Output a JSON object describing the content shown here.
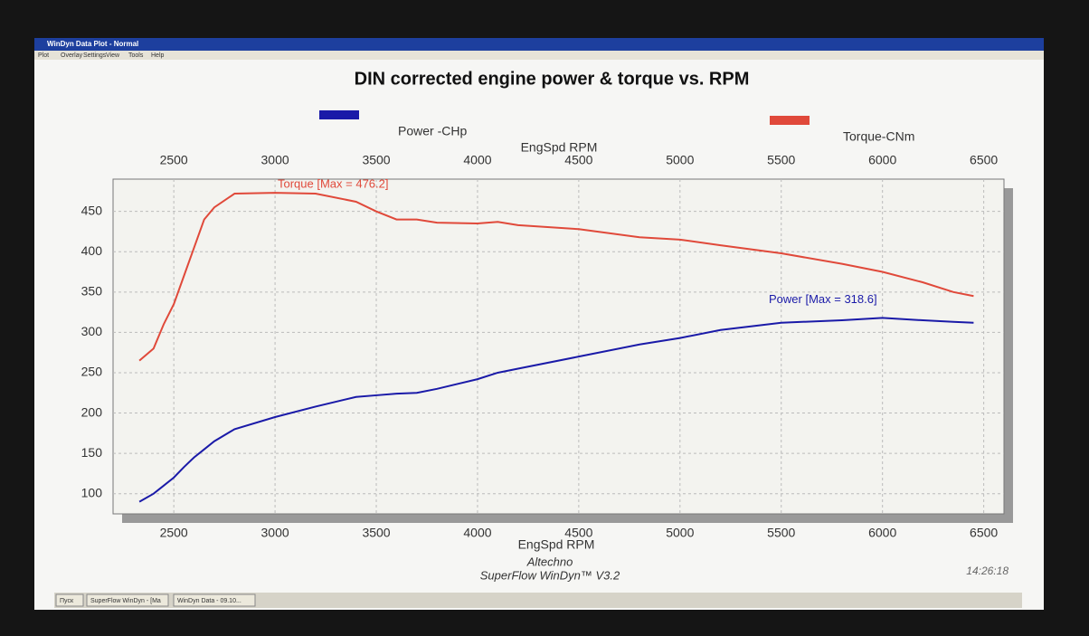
{
  "window": {
    "title": "WinDyn Data Plot - Normal",
    "menu": [
      "Plot",
      "Overlay",
      "Settings",
      "View",
      "Tools",
      "Help"
    ],
    "taskbar": [
      "Пуск",
      "SuperFlow WinDyn - [Ma",
      "WinDyn Data - 09.10..."
    ]
  },
  "chart_data": {
    "type": "line",
    "title": "DIN corrected engine power & torque vs. RPM",
    "x_label": "EngSpd RPM",
    "x": [
      2330,
      2400,
      2450,
      2500,
      2550,
      2600,
      2650,
      2700,
      2800,
      3000,
      3200,
      3400,
      3500,
      3600,
      3700,
      3800,
      4000,
      4100,
      4200,
      4500,
      4800,
      5000,
      5200,
      5500,
      5800,
      6000,
      6200,
      6350,
      6450
    ],
    "series": [
      {
        "name": "Power -CHp",
        "color": "#1a1aa8",
        "values": [
          90,
          100,
          110,
          120,
          133,
          145,
          155,
          165,
          180,
          195,
          208,
          220,
          222,
          224,
          225,
          230,
          242,
          250,
          255,
          270,
          285,
          293,
          303,
          312,
          315,
          318,
          315,
          313,
          312
        ]
      },
      {
        "name": "Torque-CNm",
        "color": "#e0493a",
        "values": [
          265,
          280,
          310,
          335,
          370,
          405,
          440,
          455,
          472,
          473,
          472,
          462,
          450,
          440,
          440,
          436,
          435,
          437,
          433,
          428,
          418,
          415,
          408,
          398,
          385,
          375,
          362,
          350,
          345
        ]
      }
    ],
    "annotations": [
      "Power  [Max = 318.6]",
      "Torque [Max = 476.2]"
    ],
    "xlim": [
      2200,
      6600
    ],
    "xticks": [
      2500,
      3000,
      3500,
      4000,
      4500,
      5000,
      5500,
      6000,
      6500
    ],
    "ylim": [
      75,
      490
    ],
    "yticks": [
      100,
      150,
      200,
      250,
      300,
      350,
      400,
      450
    ],
    "grid": true
  },
  "footer": {
    "company": "Altechno",
    "software": "SuperFlow WinDyn™ V3.2",
    "time": "14:26:18"
  }
}
